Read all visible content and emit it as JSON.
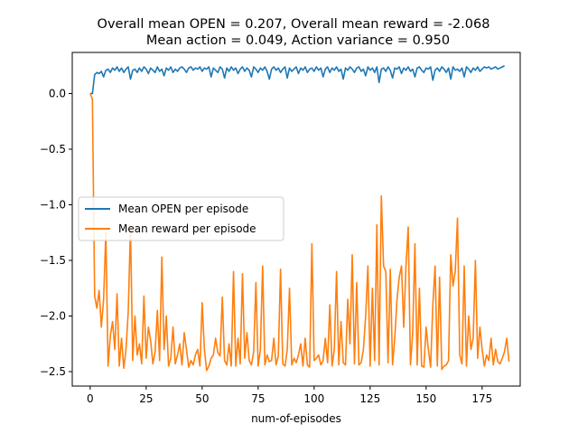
{
  "chart_data": {
    "type": "line",
    "title_line1": "Overall mean OPEN = 0.207, Overall mean reward = -2.068",
    "title_line2": "Mean action = 0.049, Action variance = 0.950",
    "xlabel": "num-of-episodes",
    "ylabel": "",
    "xlim": [
      -8,
      192
    ],
    "ylim": [
      -2.63,
      0.37
    ],
    "xticks": [
      0,
      25,
      50,
      75,
      100,
      125,
      150,
      175
    ],
    "xtick_labels": [
      "0",
      "25",
      "50",
      "75",
      "100",
      "125",
      "150",
      "175"
    ],
    "yticks": [
      0.0,
      -0.5,
      -1.0,
      -1.5,
      -2.0,
      -2.5
    ],
    "ytick_labels": [
      "0.0",
      "−0.5",
      "−1.0",
      "−1.5",
      "−2.0",
      "−2.5"
    ],
    "grid": false,
    "legend_position": "center-left",
    "series": [
      {
        "name": "Mean OPEN per episode",
        "color": "#1f77b4",
        "values": [
          0.0,
          0.0,
          0.17,
          0.19,
          0.18,
          0.2,
          0.15,
          0.21,
          0.22,
          0.19,
          0.23,
          0.21,
          0.24,
          0.2,
          0.23,
          0.19,
          0.22,
          0.24,
          0.13,
          0.21,
          0.22,
          0.19,
          0.23,
          0.2,
          0.24,
          0.22,
          0.18,
          0.23,
          0.21,
          0.19,
          0.24,
          0.2,
          0.22,
          0.16,
          0.23,
          0.21,
          0.24,
          0.19,
          0.22,
          0.2,
          0.23,
          0.24,
          0.22,
          0.19,
          0.23,
          0.24,
          0.21,
          0.23,
          0.22,
          0.24,
          0.2,
          0.23,
          0.22,
          0.24,
          0.15,
          0.23,
          0.21,
          0.19,
          0.24,
          0.22,
          0.14,
          0.23,
          0.2,
          0.24,
          0.21,
          0.23,
          0.18,
          0.22,
          0.24,
          0.2,
          0.23,
          0.21,
          0.15,
          0.24,
          0.22,
          0.19,
          0.23,
          0.21,
          0.24,
          0.2,
          0.13,
          0.22,
          0.24,
          0.21,
          0.23,
          0.19,
          0.22,
          0.24,
          0.14,
          0.23,
          0.2,
          0.22,
          0.24,
          0.18,
          0.23,
          0.21,
          0.24,
          0.19,
          0.22,
          0.23,
          0.2,
          0.24,
          0.21,
          0.23,
          0.15,
          0.22,
          0.24,
          0.19,
          0.23,
          0.21,
          0.24,
          0.2,
          0.22,
          0.13,
          0.23,
          0.21,
          0.24,
          0.22,
          0.19,
          0.23,
          0.24,
          0.2,
          0.22,
          0.16,
          0.24,
          0.21,
          0.23,
          0.19,
          0.24,
          0.1,
          0.22,
          0.23,
          0.2,
          0.24,
          0.21,
          0.14,
          0.23,
          0.22,
          0.24,
          0.18,
          0.23,
          0.21,
          0.24,
          0.2,
          0.22,
          0.15,
          0.23,
          0.24,
          0.21,
          0.19,
          0.23,
          0.22,
          0.24,
          0.12,
          0.21,
          0.23,
          0.2,
          0.24,
          0.22,
          0.19,
          0.23,
          0.13,
          0.24,
          0.21,
          0.22,
          0.2,
          0.23,
          0.15,
          0.24,
          0.22,
          0.19,
          0.23,
          0.21,
          0.24,
          0.2,
          0.22,
          0.24,
          0.23,
          0.24,
          0.22,
          0.23,
          0.24,
          0.22,
          0.23,
          0.24,
          0.25
        ]
      },
      {
        "name": "Mean reward per episode",
        "color": "#ff7f0e",
        "values": [
          0.0,
          -0.05,
          -1.82,
          -1.93,
          -1.77,
          -2.1,
          -1.85,
          -1.25,
          -2.45,
          -2.18,
          -2.05,
          -2.3,
          -1.8,
          -2.45,
          -2.2,
          -2.47,
          -2.3,
          -1.96,
          -1.2,
          -2.4,
          -2.0,
          -2.35,
          -2.25,
          -2.43,
          -1.82,
          -2.38,
          -2.1,
          -2.22,
          -2.43,
          -2.32,
          -1.95,
          -2.4,
          -1.47,
          -2.3,
          -2.0,
          -2.45,
          -2.38,
          -2.1,
          -2.43,
          -2.35,
          -2.25,
          -2.44,
          -2.15,
          -2.3,
          -2.46,
          -2.4,
          -2.44,
          -2.35,
          -2.3,
          -2.45,
          -1.88,
          -2.3,
          -2.49,
          -2.45,
          -2.38,
          -2.35,
          -2.2,
          -2.33,
          -2.36,
          -1.83,
          -2.4,
          -2.44,
          -2.25,
          -2.45,
          -1.6,
          -2.45,
          -2.2,
          -2.43,
          -1.62,
          -2.38,
          -2.15,
          -2.4,
          -2.44,
          -2.32,
          -1.7,
          -2.45,
          -2.3,
          -1.55,
          -2.44,
          -2.35,
          -2.41,
          -2.4,
          -2.2,
          -2.44,
          -2.36,
          -1.58,
          -2.43,
          -2.45,
          -2.3,
          -1.75,
          -2.44,
          -2.38,
          -2.42,
          -2.35,
          -2.25,
          -2.45,
          -2.2,
          -2.44,
          -2.46,
          -1.35,
          -2.4,
          -2.38,
          -2.35,
          -2.44,
          -2.4,
          -2.2,
          -2.42,
          -1.9,
          -2.45,
          -2.3,
          -1.6,
          -2.44,
          -2.05,
          -2.42,
          -2.44,
          -1.85,
          -2.25,
          -1.45,
          -2.43,
          -1.7,
          -2.44,
          -2.42,
          -2.3,
          -2.0,
          -1.55,
          -2.45,
          -1.75,
          -2.4,
          -1.18,
          -2.44,
          -0.92,
          -1.55,
          -1.6,
          -2.42,
          -1.58,
          -2.44,
          -2.2,
          -1.85,
          -1.65,
          -1.55,
          -2.1,
          -1.55,
          -1.2,
          -2.44,
          -2.15,
          -1.35,
          -2.44,
          -1.75,
          -2.45,
          -2.46,
          -2.1,
          -2.3,
          -2.46,
          -1.9,
          -1.55,
          -2.45,
          -1.65,
          -2.48,
          -2.45,
          -2.44,
          -2.4,
          -1.45,
          -1.73,
          -1.6,
          -1.12,
          -2.35,
          -2.43,
          -1.55,
          -2.45,
          -2.0,
          -2.3,
          -2.2,
          -1.5,
          -2.38,
          -2.1,
          -2.3,
          -2.45,
          -2.35,
          -2.4,
          -2.2,
          -2.44,
          -2.3,
          -2.41,
          -2.43,
          -2.38,
          -2.32,
          -2.2,
          -2.41
        ]
      }
    ]
  }
}
